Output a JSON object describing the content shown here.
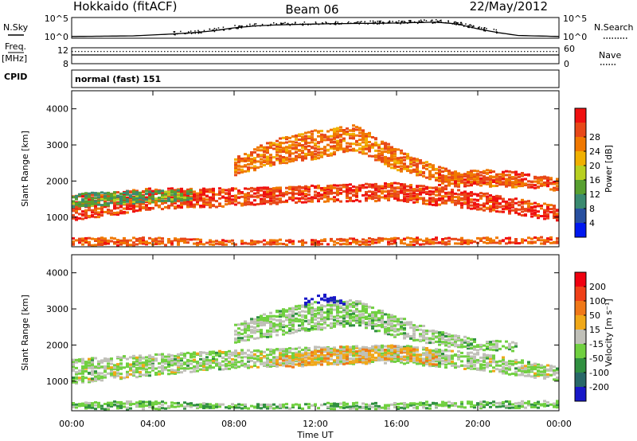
{
  "header": {
    "station": "Hokkaido (fitACF)",
    "beam": "Beam 06",
    "date": "22/May/2012"
  },
  "sky_panel": {
    "left_label": "N.Sky",
    "right_label": "N.Search",
    "right_style": "dotted",
    "left_ticks": [
      "10^5",
      "10^0"
    ],
    "right_ticks": [
      "10^5",
      "10^0"
    ],
    "log_scale": true,
    "trend": {
      "x": [
        0,
        3,
        5,
        6,
        7,
        8,
        9,
        10,
        11,
        12,
        13,
        14,
        15,
        16,
        17,
        18,
        19,
        20,
        21,
        22,
        24
      ],
      "y": [
        0.05,
        0.08,
        0.18,
        0.25,
        0.35,
        0.5,
        0.6,
        0.65,
        0.68,
        0.7,
        0.72,
        0.73,
        0.74,
        0.75,
        0.78,
        0.8,
        0.7,
        0.45,
        0.25,
        0.1,
        0.05
      ]
    }
  },
  "freq_panel": {
    "left_label": "Freq.",
    "left_unit": "[MHz]",
    "right_label": "Nave",
    "right_style": "dotted",
    "left_ticks": [
      "12",
      "8"
    ],
    "right_ticks": [
      "60",
      "0"
    ],
    "freq_mhz": 11.0,
    "nave": 46
  },
  "cpid": {
    "label": "CPID",
    "text": "normal (fast) 151"
  },
  "chart_data": [
    {
      "type": "heatmap",
      "parameter": "power",
      "ylabel": "Slant Range [km]",
      "xlim": [
        0,
        24
      ],
      "ylim": [
        180,
        4500
      ],
      "yticks": [
        "1000",
        "2000",
        "3000",
        "4000"
      ],
      "colorbar": {
        "label": "Power [dB]",
        "tick_labels": [
          "4",
          "8",
          "12",
          "16",
          "20",
          "24",
          "28"
        ],
        "colors": [
          "#0018f0",
          "#2850a0",
          "#3a8a70",
          "#58a030",
          "#b8d020",
          "#f0b000",
          "#f07800",
          "#e84818",
          "#f01010"
        ]
      },
      "bands": [
        {
          "x": [
            0,
            4,
            8,
            12,
            16,
            20,
            24
          ],
          "center": [
            1250,
            1500,
            1550,
            1650,
            1700,
            1450,
            1100
          ],
          "width": [
            700,
            600,
            500,
            450,
            500,
            500,
            400
          ],
          "level": 0.85
        },
        {
          "x": [
            0,
            3,
            6
          ],
          "center": [
            1450,
            1550,
            1600
          ],
          "width": [
            400,
            350,
            300
          ],
          "level": 0.35
        },
        {
          "x": [
            8,
            10,
            12,
            14,
            16,
            18,
            20,
            22
          ],
          "center": [
            2400,
            2800,
            3000,
            3200,
            2600,
            2200,
            2000,
            1950
          ],
          "width": [
            500,
            700,
            800,
            700,
            600,
            400,
            300,
            250
          ],
          "level": 0.75
        },
        {
          "x": [
            0,
            4,
            8,
            12,
            16,
            20,
            24
          ],
          "center": [
            320,
            330,
            300,
            310,
            330,
            340,
            350
          ],
          "width": [
            200,
            220,
            120,
            160,
            200,
            180,
            200
          ],
          "level": 0.8
        },
        {
          "x": [
            18,
            20,
            22,
            24
          ],
          "center": [
            2000,
            2100,
            2050,
            1900
          ],
          "width": [
            400,
            450,
            400,
            350
          ],
          "level": 0.8
        }
      ]
    },
    {
      "type": "heatmap",
      "parameter": "velocity",
      "ylabel": "Slant Range [km]",
      "xlabel": "Time UT",
      "xlim": [
        0,
        24
      ],
      "ylim": [
        180,
        4500
      ],
      "xticks": [
        "00:00",
        "04:00",
        "08:00",
        "12:00",
        "16:00",
        "20:00",
        "00:00"
      ],
      "yticks": [
        "1000",
        "2000",
        "3000",
        "4000"
      ],
      "colorbar": {
        "label": "Velocity [m s⁻¹]",
        "tick_labels": [
          "200",
          "100",
          "50",
          "15",
          "-15",
          "-50",
          "-100",
          "-200"
        ],
        "colors": [
          "#1818c8",
          "#286868",
          "#309040",
          "#70d040",
          "#c0c0b8",
          "#f0a818",
          "#f07818",
          "#f04018",
          "#f00010"
        ]
      },
      "bands": [
        {
          "x": [
            0,
            4,
            8,
            12,
            16,
            20,
            24
          ],
          "center": [
            1250,
            1450,
            1600,
            1700,
            1750,
            1550,
            1200
          ],
          "width": [
            700,
            600,
            500,
            500,
            500,
            500,
            400
          ],
          "level": 0.45
        },
        {
          "x": [
            8,
            10,
            12,
            14,
            16,
            18,
            20,
            22
          ],
          "center": [
            2300,
            2600,
            2800,
            2900,
            2500,
            2200,
            2000,
            1950
          ],
          "width": [
            500,
            700,
            800,
            700,
            600,
            400,
            300,
            250
          ],
          "level": 0.43
        },
        {
          "x": [
            11.5,
            12.5,
            13.5
          ],
          "center": [
            3200,
            3300,
            3150
          ],
          "width": [
            200,
            200,
            150
          ],
          "level": 0.05
        },
        {
          "x": [
            0,
            4,
            8,
            12,
            16,
            20,
            24
          ],
          "center": [
            320,
            330,
            300,
            310,
            330,
            340,
            350
          ],
          "width": [
            200,
            220,
            120,
            160,
            200,
            180,
            200
          ],
          "level": 0.38
        },
        {
          "x": [
            10,
            13,
            16,
            18
          ],
          "center": [
            1500,
            1700,
            1800,
            1600
          ],
          "width": [
            300,
            500,
            400,
            300
          ],
          "level": 0.6
        }
      ]
    }
  ]
}
